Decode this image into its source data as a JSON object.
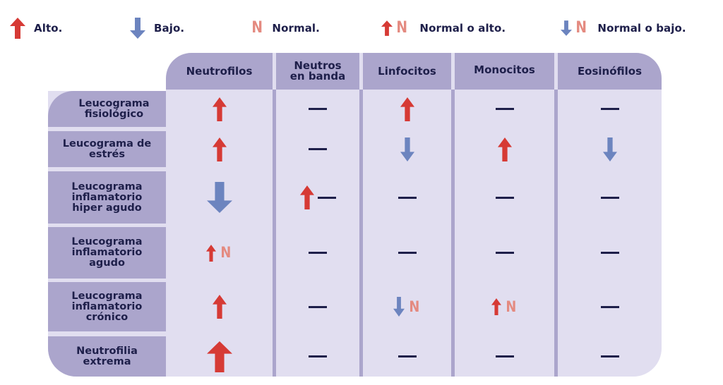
{
  "legend": [
    {
      "symbol": "up",
      "label": "Alto."
    },
    {
      "symbol": "down",
      "label": "Bajo."
    },
    {
      "symbol": "n",
      "label": "Normal."
    },
    {
      "symbol": "up-n",
      "label": "Normal o alto."
    },
    {
      "symbol": "down-n",
      "label": "Normal o bajo."
    }
  ],
  "n_glyph": "N",
  "colors": {
    "header_bg": "#aba5cc",
    "body_bg": "#e1def0",
    "text": "#1e1f4a",
    "up_arrow": "#d63a35",
    "down_arrow": "#6c84bf",
    "normal_n": "#e48a80"
  },
  "table": {
    "columns": [
      {
        "label_line1": "Neutrofilos",
        "label_line2": ""
      },
      {
        "label_line1": "Neutros",
        "label_line2": "en banda"
      },
      {
        "label_line1": "Linfocitos",
        "label_line2": ""
      },
      {
        "label_line1": "Monocitos",
        "label_line2": ""
      },
      {
        "label_line1": "Eosinófilos",
        "label_line2": ""
      }
    ],
    "rows": [
      {
        "label_lines": [
          "Leucograma",
          "fisiológico",
          ""
        ],
        "values": [
          "up",
          "dash",
          "up",
          "dash",
          "dash"
        ]
      },
      {
        "label_lines": [
          "Leucograma de",
          "estrés",
          ""
        ],
        "values": [
          "up",
          "dash",
          "down",
          "up",
          "down"
        ]
      },
      {
        "label_lines": [
          "Leucograma",
          "inflamatorio",
          "hiper agudo"
        ],
        "values": [
          "down-large",
          "up-dash",
          "dash",
          "dash",
          "dash"
        ]
      },
      {
        "label_lines": [
          "Leucograma",
          "inflamatorio",
          "agudo"
        ],
        "values": [
          "up-n",
          "dash",
          "dash",
          "dash",
          "dash"
        ]
      },
      {
        "label_lines": [
          "Leucograma",
          "inflamatorio",
          "crónico"
        ],
        "values": [
          "up",
          "dash",
          "down-n",
          "up-n",
          "dash"
        ]
      },
      {
        "label_lines": [
          "Neutrofilia",
          "extrema",
          ""
        ],
        "values": [
          "up-large",
          "dash",
          "dash",
          "dash",
          "dash"
        ]
      }
    ]
  }
}
